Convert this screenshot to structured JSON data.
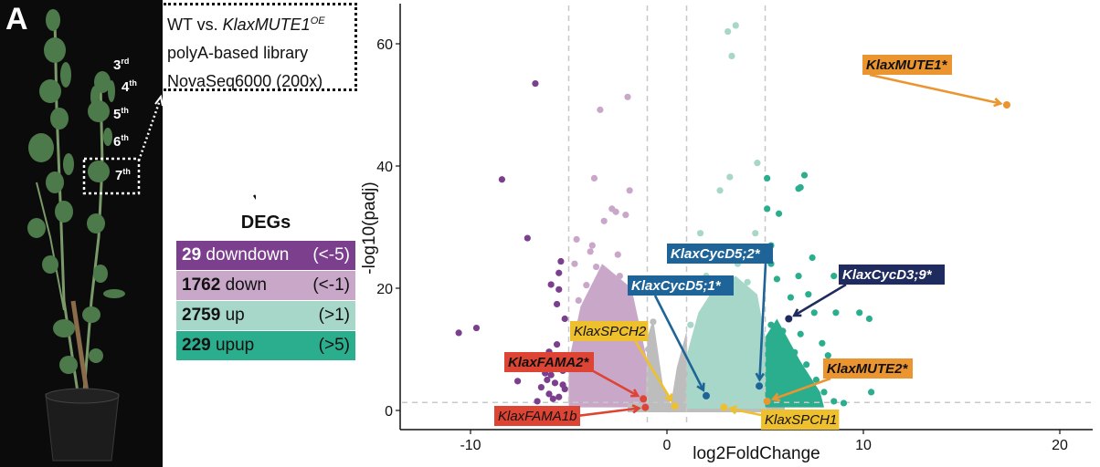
{
  "panel_label": "A",
  "photo": {
    "description": "Kalanchoe plant in black pot on black background",
    "leaf_labels": [
      {
        "num": "3",
        "sup": "rd"
      },
      {
        "num": "4",
        "sup": "th"
      },
      {
        "num": "5",
        "sup": "th"
      },
      {
        "num": "6",
        "sup": "th"
      },
      {
        "num": "7",
        "sup": "th"
      }
    ]
  },
  "info_box": {
    "line1_prefix": "WT vs. ",
    "line1_gene": "KlaxMUTE1",
    "line1_sup": "OE",
    "line2": "polyA-based library",
    "line3": "NovaSeq6000 (200x)"
  },
  "degs": {
    "title": "DEGs",
    "rows": [
      {
        "count": "29",
        "label": "downdown",
        "range": "(<-5)",
        "color": "#7B3F8E",
        "text_color": "#ffffff"
      },
      {
        "count": "1762",
        "label": "down",
        "range": "(<-1)",
        "color": "#C9A7C9",
        "text_color": "#111111"
      },
      {
        "count": "2759",
        "label": "up",
        "range": "(>1)",
        "color": "#A6D7C8",
        "text_color": "#111111"
      },
      {
        "count": "229",
        "label": "upup",
        "range": "(>5)",
        "color": "#2BAE8E",
        "text_color": "#111111"
      }
    ]
  },
  "chart_data": {
    "type": "scatter",
    "title": "",
    "xlabel": "log2FoldChange",
    "ylabel": "-log10(padj)",
    "xlim": [
      -13.5,
      22
    ],
    "ylim": [
      -3,
      67
    ],
    "xticks": [
      -10,
      0,
      10,
      20
    ],
    "yticks": [
      0,
      20,
      40,
      60
    ],
    "grid": false,
    "threshold_lines": {
      "x": [
        -5,
        -1,
        1,
        5
      ],
      "y": [
        1.3
      ]
    },
    "colors": {
      "downdown": "#7B3F8E",
      "down": "#C9A7C9",
      "ns": "#BDBDBD",
      "up": "#A6D7C8",
      "upup": "#2BAE8E"
    },
    "series": [
      {
        "name": "downdown",
        "points": [
          [
            -6.7,
            53.5
          ],
          [
            -8.4,
            37.8
          ],
          [
            -7.1,
            28.2
          ],
          [
            -5.4,
            24.4
          ],
          [
            -5.5,
            22.5
          ],
          [
            -5.9,
            20.6
          ],
          [
            -5.5,
            19.8
          ],
          [
            -5.6,
            17.4
          ],
          [
            -5.2,
            15.0
          ],
          [
            -9.7,
            13.5
          ],
          [
            -10.6,
            12.7
          ],
          [
            -5.6,
            10.8
          ],
          [
            -6.0,
            9.6
          ],
          [
            -6.3,
            8.6
          ],
          [
            -5.8,
            8.0
          ],
          [
            -6.6,
            7.2
          ],
          [
            -5.3,
            6.5
          ],
          [
            -5.9,
            5.8
          ],
          [
            -6.1,
            5.0
          ],
          [
            -5.7,
            4.5
          ],
          [
            -6.4,
            3.8
          ],
          [
            -5.2,
            3.5
          ],
          [
            -6.0,
            2.7
          ],
          [
            -5.5,
            2.2
          ],
          [
            -5.8,
            1.9
          ],
          [
            -6.6,
            1.5
          ],
          [
            -5.3,
            4.2
          ],
          [
            -6.2,
            6.1
          ],
          [
            -7.6,
            4.8
          ]
        ]
      },
      {
        "name": "down",
        "points": [
          [
            -3.4,
            49.2
          ],
          [
            -2.0,
            51.3
          ],
          [
            -3.7,
            38.0
          ],
          [
            -1.9,
            36.0
          ],
          [
            -2.8,
            33.0
          ],
          [
            -2.6,
            32.5
          ],
          [
            -2.1,
            32.0
          ],
          [
            -3.2,
            31.0
          ],
          [
            -4.6,
            28.0
          ],
          [
            -3.8,
            27.0
          ],
          [
            -3.9,
            26.0
          ],
          [
            -2.5,
            25.5
          ],
          [
            -4.7,
            24.0
          ],
          [
            -3.6,
            23.5
          ],
          [
            -2.4,
            22.0
          ],
          [
            -3.0,
            21.0
          ],
          [
            -4.1,
            20.5
          ],
          [
            -2.2,
            19.5
          ],
          [
            -3.4,
            18.5
          ],
          [
            -4.5,
            18.0
          ],
          [
            -2.7,
            17.0
          ],
          [
            -3.9,
            16.0
          ],
          [
            -1.8,
            15.5
          ],
          [
            -3.1,
            15.0
          ],
          [
            -4.2,
            14.5
          ],
          [
            -2.3,
            14.0
          ],
          [
            -3.6,
            13.0
          ],
          [
            -1.6,
            12.5
          ],
          [
            -4.4,
            12.0
          ],
          [
            -2.8,
            11.5
          ],
          [
            -3.3,
            10.5
          ],
          [
            -1.9,
            10.0
          ],
          [
            -4.0,
            9.5
          ],
          [
            -2.5,
            9.0
          ],
          [
            -3.7,
            8.5
          ],
          [
            -1.5,
            8.0
          ],
          [
            -4.3,
            7.5
          ],
          [
            -2.1,
            7.0
          ],
          [
            -3.0,
            6.5
          ],
          [
            -1.7,
            6.0
          ],
          [
            -4.6,
            5.5
          ],
          [
            -2.6,
            5.0
          ],
          [
            -3.5,
            4.5
          ],
          [
            -1.4,
            4.0
          ],
          [
            -2.9,
            3.5
          ],
          [
            -4.1,
            3.0
          ],
          [
            -2.2,
            2.5
          ],
          [
            -1.3,
            2.0
          ],
          [
            -3.8,
            2.0
          ],
          [
            -1.2,
            1.6
          ]
        ]
      },
      {
        "name": "ns",
        "points": [
          [
            -0.8,
            2.5
          ],
          [
            -0.5,
            5.0
          ],
          [
            -0.2,
            3.0
          ],
          [
            0.2,
            2.0
          ],
          [
            0.5,
            1.5
          ],
          [
            0.8,
            4.0
          ],
          [
            -0.6,
            8.0
          ],
          [
            0.9,
            6.0
          ],
          [
            -0.3,
            1.2
          ],
          [
            0.4,
            0.8
          ],
          [
            -0.9,
            0.6
          ],
          [
            0.7,
            0.5
          ],
          [
            -0.4,
            0.3
          ],
          [
            0.1,
            0.2
          ],
          [
            0.95,
            3.0
          ],
          [
            -0.95,
            10.0
          ],
          [
            -0.7,
            14.5
          ]
        ]
      },
      {
        "name": "up",
        "points": [
          [
            3.5,
            63.0
          ],
          [
            3.1,
            62.0
          ],
          [
            3.3,
            58.0
          ],
          [
            4.6,
            40.5
          ],
          [
            3.2,
            38.2
          ],
          [
            2.7,
            36.0
          ],
          [
            4.5,
            29.0
          ],
          [
            1.7,
            29.0
          ],
          [
            2.4,
            26.0
          ],
          [
            3.6,
            24.0
          ],
          [
            2.0,
            22.0
          ],
          [
            4.1,
            21.0
          ],
          [
            1.4,
            20.0
          ],
          [
            3.0,
            19.0
          ],
          [
            4.4,
            18.0
          ],
          [
            2.5,
            17.0
          ],
          [
            1.8,
            16.0
          ],
          [
            3.7,
            15.0
          ],
          [
            1.2,
            14.0
          ],
          [
            2.9,
            13.5
          ],
          [
            4.2,
            12.5
          ],
          [
            2.2,
            12.0
          ],
          [
            3.4,
            11.0
          ],
          [
            1.6,
            10.5
          ],
          [
            4.7,
            10.0
          ],
          [
            2.6,
            9.5
          ],
          [
            3.9,
            9.0
          ],
          [
            1.3,
            8.5
          ],
          [
            3.1,
            8.0
          ],
          [
            2.1,
            7.5
          ],
          [
            4.5,
            7.0
          ],
          [
            1.9,
            6.5
          ],
          [
            3.5,
            6.0
          ],
          [
            2.8,
            5.5
          ],
          [
            1.5,
            5.0
          ],
          [
            4.0,
            4.5
          ],
          [
            2.4,
            4.0
          ],
          [
            3.3,
            3.5
          ],
          [
            1.1,
            3.0
          ],
          [
            4.8,
            2.5
          ],
          [
            2.0,
            2.0
          ],
          [
            3.8,
            1.8
          ],
          [
            1.4,
            1.5
          ]
        ]
      },
      {
        "name": "upup",
        "points": [
          [
            5.1,
            38.0
          ],
          [
            7.0,
            38.5
          ],
          [
            6.8,
            36.5
          ],
          [
            6.7,
            36.3
          ],
          [
            5.1,
            33.0
          ],
          [
            5.7,
            32.2
          ],
          [
            5.3,
            27.0
          ],
          [
            5.3,
            24.0
          ],
          [
            7.4,
            25.0
          ],
          [
            6.7,
            22.0
          ],
          [
            8.5,
            22.0
          ],
          [
            5.6,
            21.5
          ],
          [
            6.3,
            18.5
          ],
          [
            7.2,
            19.0
          ],
          [
            7.5,
            16.0
          ],
          [
            8.6,
            16.0
          ],
          [
            9.8,
            16.0
          ],
          [
            10.3,
            15.0
          ],
          [
            5.3,
            14.0
          ],
          [
            5.9,
            13.0
          ],
          [
            6.8,
            12.5
          ],
          [
            5.7,
            11.5
          ],
          [
            7.9,
            11.0
          ],
          [
            5.5,
            10.0
          ],
          [
            6.5,
            9.5
          ],
          [
            8.2,
            9.0
          ],
          [
            6.0,
            8.0
          ],
          [
            7.1,
            7.5
          ],
          [
            5.4,
            7.0
          ],
          [
            8.8,
            6.5
          ],
          [
            6.3,
            6.0
          ],
          [
            5.8,
            5.0
          ],
          [
            7.6,
            5.0
          ],
          [
            6.9,
            4.0
          ],
          [
            10.4,
            3.0
          ],
          [
            5.2,
            3.5
          ],
          [
            8.0,
            3.0
          ],
          [
            6.2,
            2.5
          ],
          [
            5.6,
            2.0
          ],
          [
            7.3,
            1.8
          ],
          [
            8.5,
            1.5
          ],
          [
            9.0,
            1.2
          ]
        ]
      }
    ],
    "highlighted_genes": [
      {
        "label": "KlaxMUTE1*",
        "x": 17.3,
        "y": 50.0,
        "color": "#EB9530",
        "text_color": "#111111"
      },
      {
        "label": "KlaxCycD5;2*",
        "x": 4.7,
        "y": 4.0,
        "color": "#1E6498",
        "text_color": "#ffffff"
      },
      {
        "label": "KlaxCycD5;1*",
        "x": 2.0,
        "y": 2.4,
        "color": "#1E6498",
        "text_color": "#ffffff"
      },
      {
        "label": "KlaxCycD3;9*",
        "x": 6.2,
        "y": 15.0,
        "color": "#1F2A5E",
        "text_color": "#ffffff"
      },
      {
        "label": "KlaxSPCH2",
        "x": 0.4,
        "y": 0.7,
        "color": "#EFC02E",
        "text_color": "#111111"
      },
      {
        "label": "KlaxFAMA2*",
        "x": -1.2,
        "y": 1.9,
        "color": "#DE4433",
        "text_color": "#111111"
      },
      {
        "label": "KlaxFAMA1b",
        "x": -1.1,
        "y": 0.5,
        "color": "#DE4433",
        "text_color": "#111111"
      },
      {
        "label": "KlaxMUTE2*",
        "x": 5.1,
        "y": 1.5,
        "color": "#EB9530",
        "text_color": "#111111"
      },
      {
        "label": "KlaxSPCH1",
        "x": 2.9,
        "y": 0.5,
        "color": "#EFC02E",
        "text_color": "#111111"
      }
    ]
  }
}
